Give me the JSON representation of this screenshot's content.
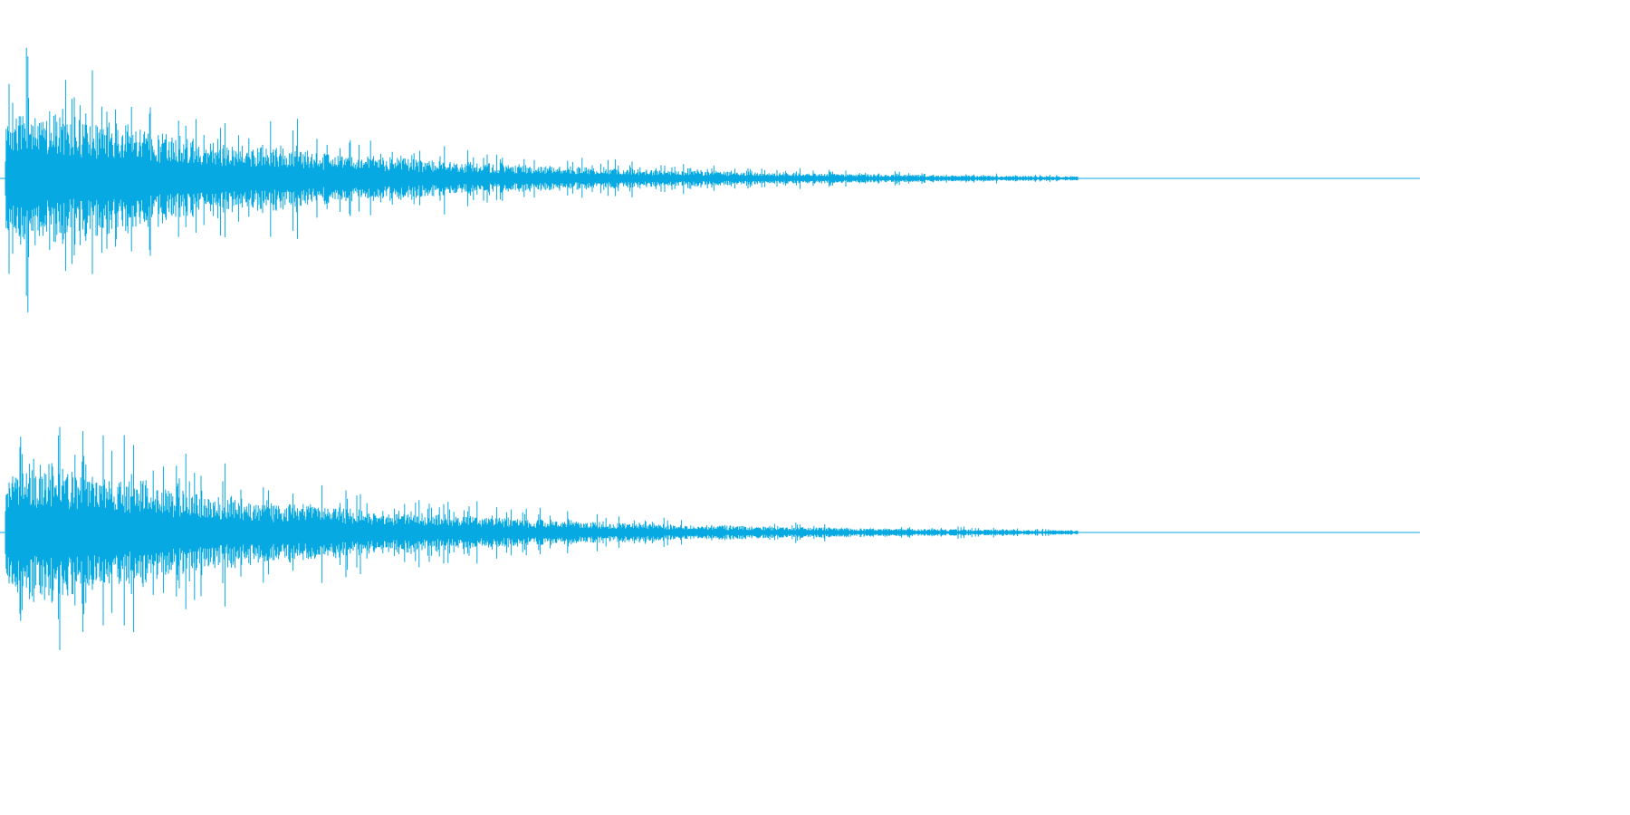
{
  "waveform": {
    "color": "#07a9e2",
    "channel_count": 2,
    "channels": [
      {
        "name": "top",
        "peak_amplitude": 0.95,
        "decay": "exponential"
      },
      {
        "name": "bottom",
        "peak_amplitude": 0.95,
        "decay": "exponential"
      }
    ]
  }
}
